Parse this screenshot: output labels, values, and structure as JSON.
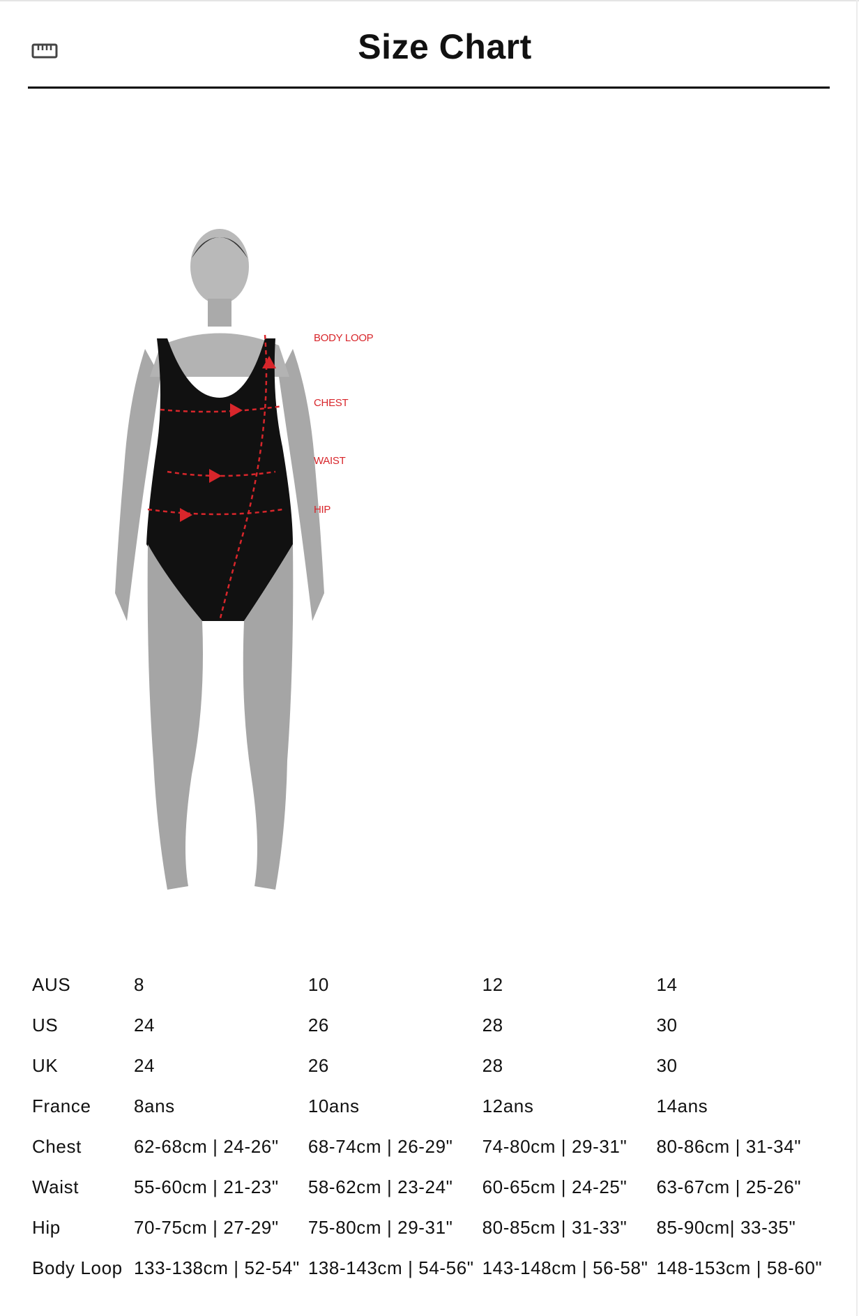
{
  "header": {
    "title": "Size Chart",
    "icon": "ruler-icon"
  },
  "figure": {
    "labels": {
      "body_loop": "BODY LOOP",
      "chest": "CHEST",
      "waist": "WAIST",
      "hip": "HIP"
    },
    "accent_color": "#d8262b"
  },
  "table": {
    "rows": [
      {
        "label": "AUS",
        "values": [
          "8",
          "10",
          "12",
          "14"
        ]
      },
      {
        "label": "US",
        "values": [
          "24",
          "26",
          "28",
          "30"
        ]
      },
      {
        "label": "UK",
        "values": [
          "24",
          "26",
          "28",
          "30"
        ]
      },
      {
        "label": "France",
        "values": [
          "8ans",
          "10ans",
          "12ans",
          "14ans"
        ]
      },
      {
        "label": "Chest",
        "values": [
          "62-68cm | 24-26\"",
          "68-74cm | 26-29\"",
          "74-80cm | 29-31\"",
          "80-86cm | 31-34\""
        ]
      },
      {
        "label": "Waist",
        "values": [
          "55-60cm | 21-23\"",
          "58-62cm | 23-24\"",
          "60-65cm | 24-25\"",
          "63-67cm | 25-26\""
        ]
      },
      {
        "label": "Hip",
        "values": [
          "70-75cm | 27-29\"",
          "75-80cm | 29-31\"",
          "80-85cm | 31-33\"",
          "85-90cm| 33-35\""
        ]
      },
      {
        "label": "Body Loop",
        "values": [
          "133-138cm | 52-54\"",
          "138-143cm | 54-56\"",
          "143-148cm | 56-58\"",
          "148-153cm | 58-60\""
        ]
      }
    ]
  }
}
